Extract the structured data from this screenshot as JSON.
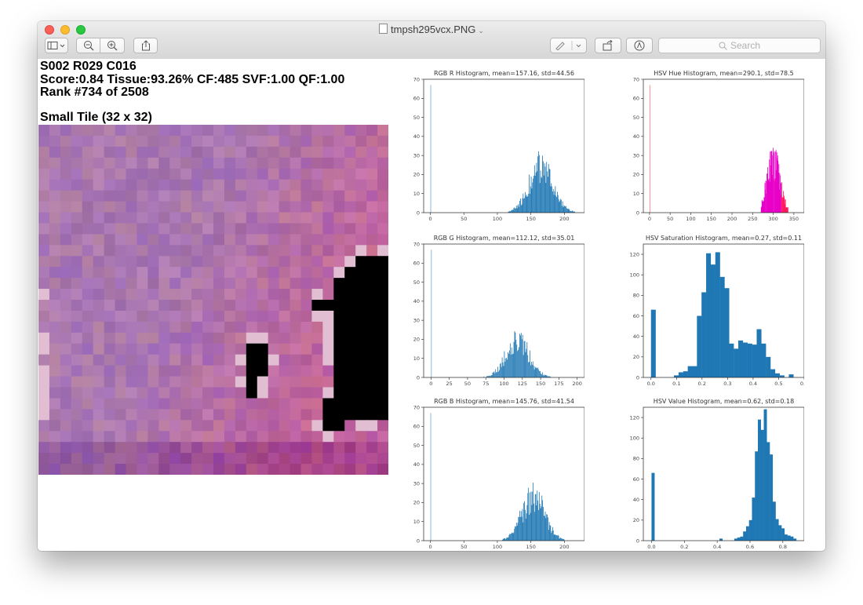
{
  "window": {
    "title": "tmpsh295vcx.PNG",
    "search_placeholder": "Search"
  },
  "info": {
    "line1": "S002 R029 C016",
    "line2": "Score:0.84 Tissue:93.26% CF:485 SVF:1.00 QF:1.00",
    "line3": "Rank #734 of 2508",
    "tile_label": "Small Tile (32 x 32)"
  },
  "colors": {
    "bar_blue": "#1f77b4",
    "hue_magenta": "#e800c8",
    "tissue_pink": "#b87aa5",
    "mask_black": "#000000"
  },
  "chart_data": [
    {
      "type": "bar",
      "title": "RGB R Histogram, mean=157.16, std=44.56",
      "xticks": [
        0,
        50,
        100,
        150,
        200
      ],
      "yticks": [
        0,
        10,
        20,
        30,
        40,
        50,
        60,
        70
      ],
      "xlim": [
        -10,
        230
      ],
      "ylim": [
        0,
        70
      ],
      "spike": {
        "x": 0,
        "value": 67
      },
      "peak": {
        "x": 165,
        "value": 26,
        "spread": 18,
        "start": 115,
        "end": 215
      }
    },
    {
      "type": "bar",
      "title": "HSV Hue Histogram, mean=290.1, std=78.5",
      "xticks": [
        0,
        50,
        100,
        150,
        200,
        250,
        300,
        350
      ],
      "yticks": [
        0,
        10,
        20,
        30,
        40,
        50,
        60,
        70
      ],
      "xlim": [
        -15,
        375
      ],
      "ylim": [
        0,
        70
      ],
      "spike": {
        "x": 0,
        "value": 67
      },
      "peak": {
        "x": 300,
        "value": 29,
        "spread": 16,
        "start": 270,
        "end": 335
      }
    },
    {
      "type": "bar",
      "title": "RGB G Histogram, mean=112.12, std=35.01",
      "xticks": [
        0,
        25,
        50,
        75,
        100,
        125,
        150,
        175,
        200
      ],
      "yticks": [
        0,
        10,
        20,
        30,
        40,
        50,
        60,
        70
      ],
      "xlim": [
        -10,
        210
      ],
      "ylim": [
        0,
        70
      ],
      "spike": {
        "x": 0,
        "value": 67
      },
      "peak": {
        "x": 118,
        "value": 20,
        "spread": 16,
        "start": 60,
        "end": 185
      }
    },
    {
      "type": "bar",
      "title": "HSV Saturation Histogram, mean=0.27, std=0.11",
      "xticks": [
        0.0,
        0.1,
        0.2,
        0.3,
        0.4,
        0.5,
        0.6
      ],
      "yticks": [
        0,
        20,
        40,
        60,
        80,
        100,
        120
      ],
      "xlim": [
        -0.03,
        0.6
      ],
      "ylim": [
        0,
        130
      ],
      "bins": [
        [
          0.0,
          66
        ],
        [
          0.018,
          0
        ],
        [
          0.036,
          0
        ],
        [
          0.054,
          0
        ],
        [
          0.072,
          0
        ],
        [
          0.09,
          2
        ],
        [
          0.108,
          5
        ],
        [
          0.126,
          6
        ],
        [
          0.144,
          11
        ],
        [
          0.162,
          11
        ],
        [
          0.18,
          60
        ],
        [
          0.198,
          83
        ],
        [
          0.216,
          121
        ],
        [
          0.234,
          110
        ],
        [
          0.252,
          122
        ],
        [
          0.27,
          98
        ],
        [
          0.288,
          87
        ],
        [
          0.306,
          33
        ],
        [
          0.324,
          28
        ],
        [
          0.342,
          36
        ],
        [
          0.36,
          34
        ],
        [
          0.378,
          33
        ],
        [
          0.396,
          32
        ],
        [
          0.414,
          47
        ],
        [
          0.432,
          33
        ],
        [
          0.45,
          20
        ],
        [
          0.468,
          8
        ],
        [
          0.486,
          4
        ],
        [
          0.504,
          2
        ],
        [
          0.522,
          0
        ],
        [
          0.54,
          3
        ]
      ],
      "bin_width": 0.018
    },
    {
      "type": "bar",
      "title": "RGB B Histogram, mean=145.76, std=41.54",
      "xticks": [
        0,
        50,
        100,
        150,
        200
      ],
      "yticks": [
        0,
        10,
        20,
        30,
        40,
        50,
        60,
        70
      ],
      "xlim": [
        -10,
        230
      ],
      "ylim": [
        0,
        70
      ],
      "spike": {
        "x": 0,
        "value": 67
      },
      "peak": {
        "x": 153,
        "value": 25,
        "spread": 17,
        "start": 105,
        "end": 200
      }
    },
    {
      "type": "bar",
      "title": "HSV Value Histogram, mean=0.62, std=0.18",
      "xticks": [
        0.0,
        0.2,
        0.4,
        0.6,
        0.8
      ],
      "yticks": [
        0,
        20,
        40,
        60,
        80,
        100,
        120
      ],
      "xlim": [
        -0.05,
        0.93
      ],
      "ylim": [
        0,
        130
      ],
      "bins": [
        [
          0.0,
          66
        ],
        [
          0.018,
          0
        ],
        [
          0.036,
          0
        ],
        [
          0.054,
          0
        ],
        [
          0.072,
          0
        ],
        [
          0.09,
          0
        ],
        [
          0.108,
          0
        ],
        [
          0.126,
          0
        ],
        [
          0.144,
          0
        ],
        [
          0.162,
          0
        ],
        [
          0.18,
          0
        ],
        [
          0.198,
          0
        ],
        [
          0.216,
          0
        ],
        [
          0.234,
          0
        ],
        [
          0.252,
          0
        ],
        [
          0.27,
          0
        ],
        [
          0.288,
          0
        ],
        [
          0.306,
          0
        ],
        [
          0.324,
          0
        ],
        [
          0.342,
          0
        ],
        [
          0.36,
          0
        ],
        [
          0.378,
          0
        ],
        [
          0.396,
          0
        ],
        [
          0.414,
          2
        ],
        [
          0.432,
          0
        ],
        [
          0.45,
          0
        ],
        [
          0.468,
          0
        ],
        [
          0.486,
          0
        ],
        [
          0.504,
          2
        ],
        [
          0.522,
          3
        ],
        [
          0.54,
          4
        ],
        [
          0.558,
          9
        ],
        [
          0.576,
          14
        ],
        [
          0.594,
          20
        ],
        [
          0.612,
          42
        ],
        [
          0.63,
          87
        ],
        [
          0.648,
          118
        ],
        [
          0.666,
          108
        ],
        [
          0.684,
          128
        ],
        [
          0.702,
          96
        ],
        [
          0.72,
          84
        ],
        [
          0.738,
          38
        ],
        [
          0.756,
          21
        ],
        [
          0.774,
          15
        ],
        [
          0.792,
          12
        ],
        [
          0.81,
          6
        ],
        [
          0.828,
          5
        ],
        [
          0.846,
          4
        ],
        [
          0.864,
          2
        ],
        [
          0.882,
          0
        ]
      ],
      "bin_width": 0.018
    }
  ]
}
